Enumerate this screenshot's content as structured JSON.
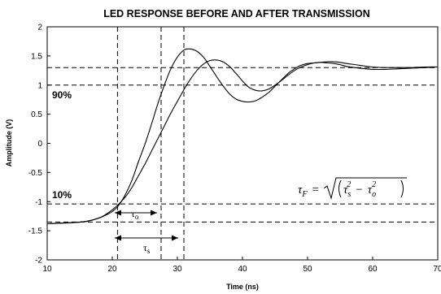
{
  "chart_data": {
    "type": "line",
    "title": "LED RESPONSE BEFORE AND AFTER TRANSMISSION",
    "xlabel": "Time (ns)",
    "ylabel": "Amplitude (V)",
    "xlim": [
      10,
      70
    ],
    "ylim": [
      -2,
      2
    ],
    "x_ticks": [
      "10",
      "20",
      "30",
      "40",
      "50",
      "60",
      "70"
    ],
    "y_ticks": [
      "2",
      "1.5",
      "1",
      "0.5",
      "0",
      "-0.5",
      "-1",
      "-1.5",
      "-2"
    ],
    "grid": false,
    "legend": "none",
    "series": [
      {
        "points": [
          [
            10,
            -1.38
          ],
          [
            12,
            -1.37
          ],
          [
            14,
            -1.36
          ],
          [
            16,
            -1.34
          ],
          [
            18,
            -1.28
          ],
          [
            20,
            -1.17
          ],
          [
            21,
            -1.06
          ],
          [
            22,
            -0.88
          ],
          [
            23,
            -0.64
          ],
          [
            24,
            -0.32
          ],
          [
            25,
            -0.02
          ],
          [
            26,
            0.32
          ],
          [
            27,
            0.68
          ],
          [
            28,
            1.0
          ],
          [
            29,
            1.28
          ],
          [
            30,
            1.48
          ],
          [
            31,
            1.6
          ],
          [
            32,
            1.62
          ],
          [
            33,
            1.58
          ],
          [
            34,
            1.48
          ],
          [
            35,
            1.32
          ],
          [
            36,
            1.15
          ],
          [
            37,
            0.99
          ],
          [
            38,
            0.85
          ],
          [
            39,
            0.76
          ],
          [
            40,
            0.72
          ],
          [
            41,
            0.71
          ],
          [
            42,
            0.73
          ],
          [
            43,
            0.79
          ],
          [
            44,
            0.87
          ],
          [
            45,
            0.98
          ],
          [
            46,
            1.09
          ],
          [
            47,
            1.2
          ],
          [
            48,
            1.28
          ],
          [
            49,
            1.34
          ],
          [
            50,
            1.37
          ],
          [
            51,
            1.38
          ],
          [
            52,
            1.39
          ],
          [
            53,
            1.38
          ],
          [
            54,
            1.37
          ],
          [
            55,
            1.35
          ],
          [
            56,
            1.32
          ],
          [
            58,
            1.29
          ],
          [
            60,
            1.27
          ],
          [
            62,
            1.27
          ],
          [
            64,
            1.28
          ],
          [
            66,
            1.29
          ],
          [
            68,
            1.3
          ],
          [
            70,
            1.31
          ]
        ]
      },
      {
        "points": [
          [
            10,
            -1.38
          ],
          [
            12,
            -1.37
          ],
          [
            14,
            -1.36
          ],
          [
            16,
            -1.34
          ],
          [
            18,
            -1.28
          ],
          [
            19,
            -1.22
          ],
          [
            20,
            -1.14
          ],
          [
            21,
            -1.04
          ],
          [
            22,
            -0.92
          ],
          [
            23,
            -0.76
          ],
          [
            24,
            -0.56
          ],
          [
            25,
            -0.36
          ],
          [
            26,
            -0.14
          ],
          [
            27,
            0.08
          ],
          [
            28,
            0.3
          ],
          [
            29,
            0.52
          ],
          [
            30,
            0.72
          ],
          [
            31,
            0.92
          ],
          [
            32,
            1.1
          ],
          [
            33,
            1.25
          ],
          [
            34,
            1.36
          ],
          [
            35,
            1.42
          ],
          [
            36,
            1.43
          ],
          [
            37,
            1.4
          ],
          [
            38,
            1.32
          ],
          [
            39,
            1.2
          ],
          [
            40,
            1.07
          ],
          [
            41,
            0.96
          ],
          [
            42,
            0.91
          ],
          [
            43,
            0.9
          ],
          [
            44,
            0.93
          ],
          [
            45,
            1.0
          ],
          [
            46,
            1.08
          ],
          [
            47,
            1.17
          ],
          [
            48,
            1.25
          ],
          [
            49,
            1.31
          ],
          [
            50,
            1.35
          ],
          [
            51,
            1.38
          ],
          [
            52,
            1.39
          ],
          [
            53,
            1.4
          ],
          [
            54,
            1.4
          ],
          [
            55,
            1.39
          ],
          [
            56,
            1.37
          ],
          [
            58,
            1.34
          ],
          [
            60,
            1.31
          ],
          [
            62,
            1.3
          ],
          [
            64,
            1.3
          ],
          [
            66,
            1.3
          ],
          [
            68,
            1.31
          ],
          [
            70,
            1.31
          ]
        ]
      }
    ],
    "reference_lines": {
      "horizontal": [
        1.3,
        1.0,
        -1.04,
        -1.35
      ],
      "vertical": [
        20.8,
        27.5,
        31.0
      ]
    },
    "annotations": {
      "level_high": "90%",
      "level_low": "10%",
      "tau_o": "τ",
      "tau_o_sub": "o",
      "tau_s": "τ",
      "tau_s_sub": "s",
      "formula": {
        "lhs": "τ",
        "lhs_sub": "F",
        "eq": "=",
        "rhs_tau1": "τ",
        "rhs_sub1": "s",
        "minus": "−",
        "rhs_tau2": "τ",
        "rhs_sub2": "o",
        "sup": "2"
      }
    }
  }
}
